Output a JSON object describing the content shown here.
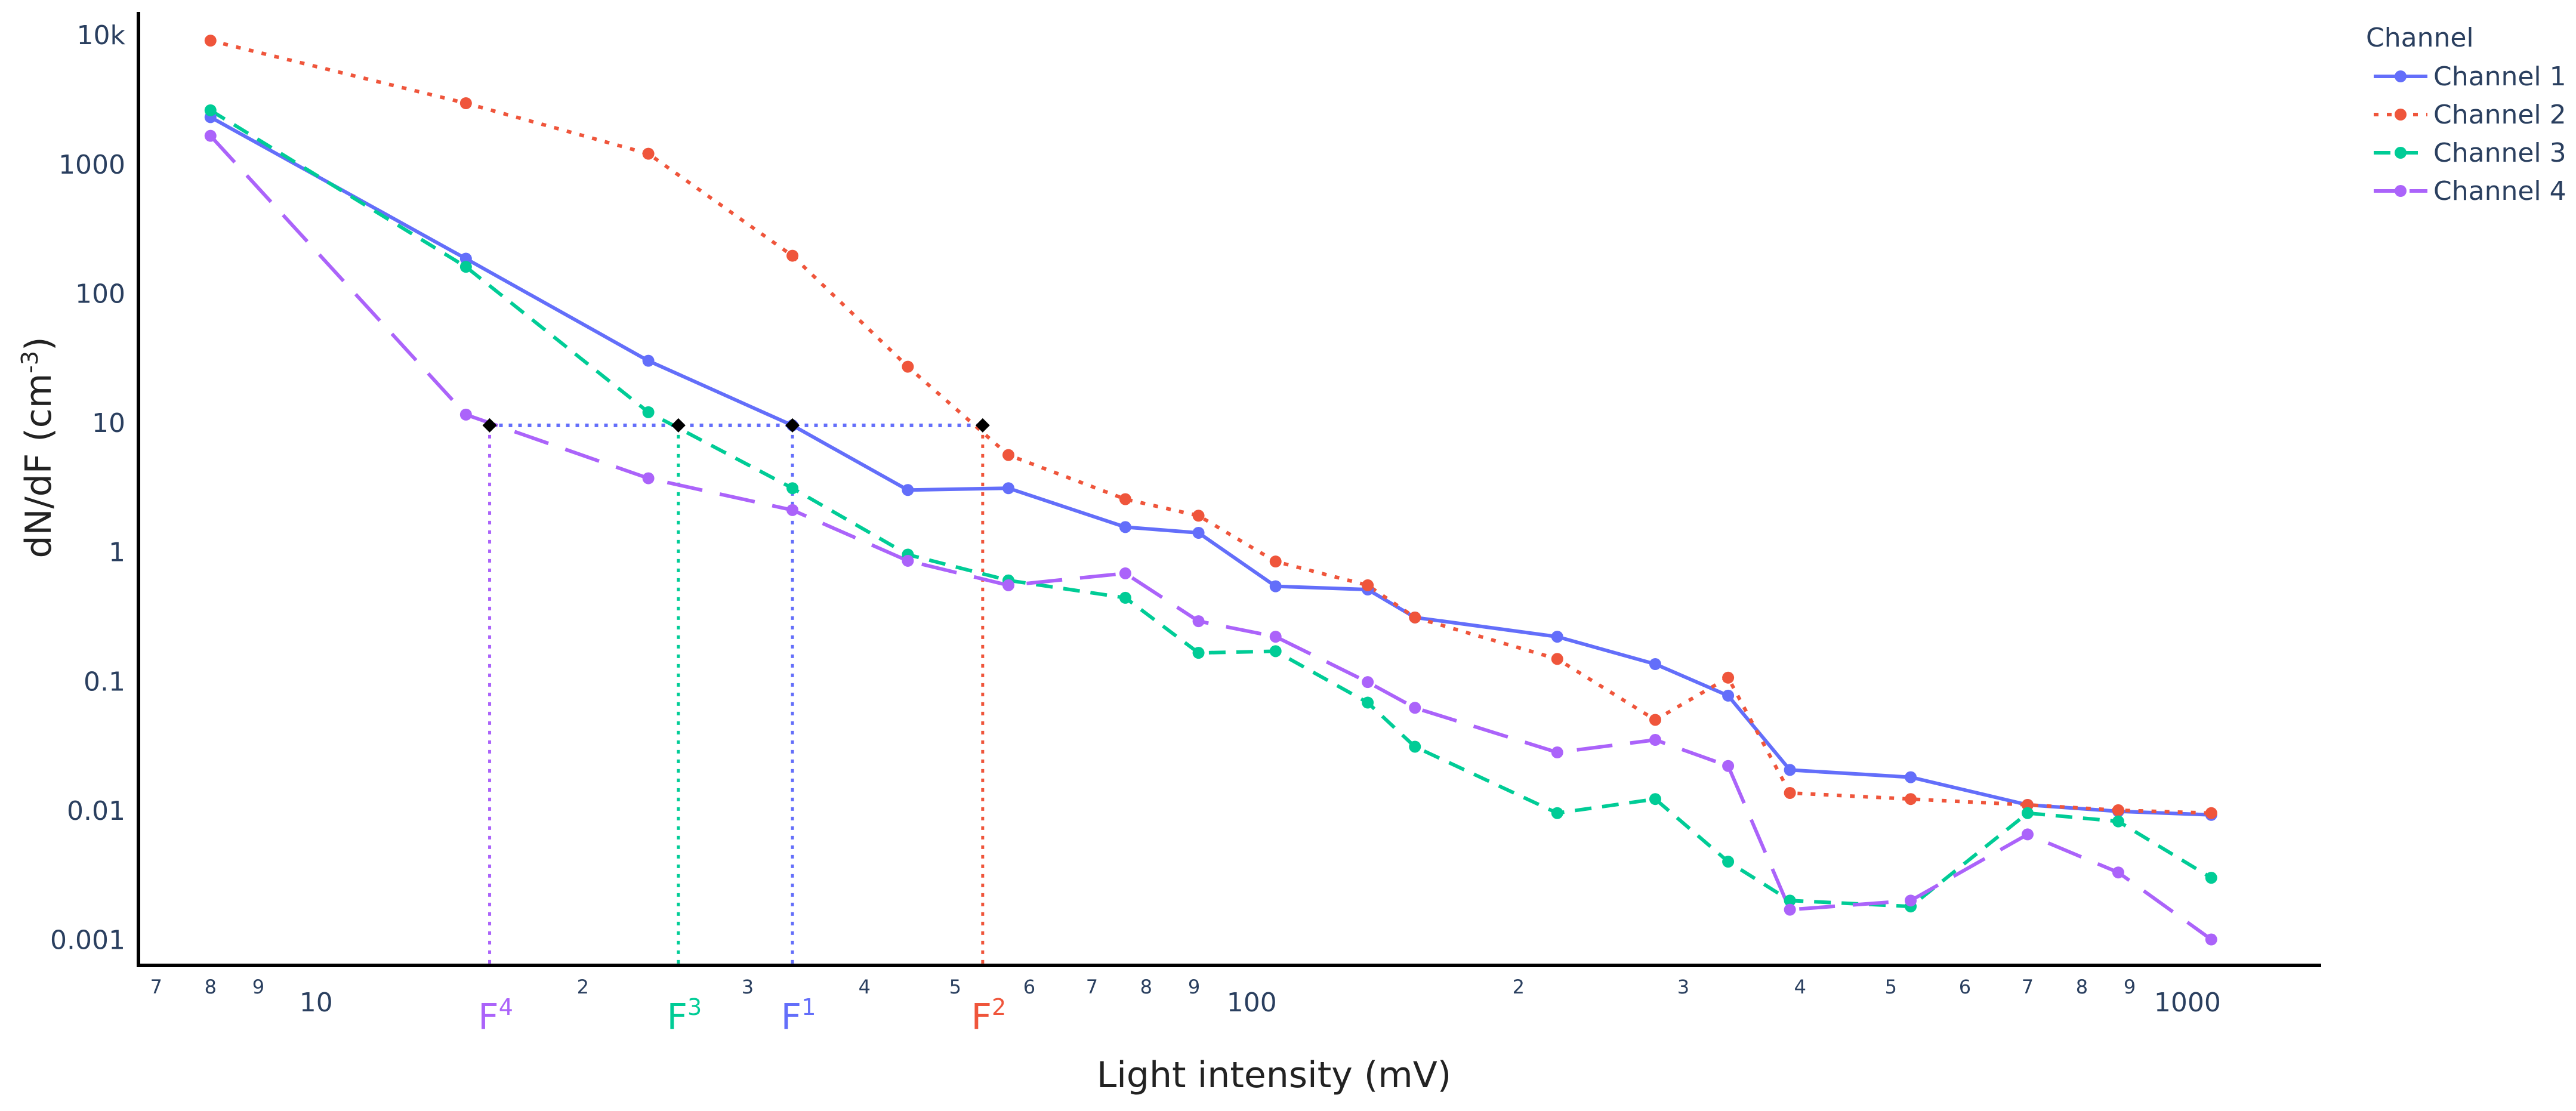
{
  "chart_data": {
    "type": "line",
    "x_scale": "log",
    "y_scale": "log",
    "xlabel": "Light intensity (mV)",
    "ylabel": "dN/dF (cm",
    "ylabel_sup": "-3",
    "ylabel_close": ")",
    "xlim": [
      6.7,
      1400
    ],
    "ylim": [
      0.00063,
      15000
    ],
    "x_ticks_major": [
      {
        "value": 10,
        "label": "10"
      },
      {
        "value": 100,
        "label": "100"
      },
      {
        "value": 1000,
        "label": "1000"
      }
    ],
    "x_ticks_minor": [
      {
        "value": 7,
        "label": "7"
      },
      {
        "value": 8,
        "label": "8"
      },
      {
        "value": 9,
        "label": "9"
      },
      {
        "value": 20,
        "label": "2"
      },
      {
        "value": 30,
        "label": "3"
      },
      {
        "value": 40,
        "label": "4"
      },
      {
        "value": 50,
        "label": "5"
      },
      {
        "value": 60,
        "label": "6"
      },
      {
        "value": 70,
        "label": "7"
      },
      {
        "value": 80,
        "label": "8"
      },
      {
        "value": 90,
        "label": "9"
      },
      {
        "value": 200,
        "label": "2"
      },
      {
        "value": 300,
        "label": "3"
      },
      {
        "value": 400,
        "label": "4"
      },
      {
        "value": 500,
        "label": "5"
      },
      {
        "value": 600,
        "label": "6"
      },
      {
        "value": 700,
        "label": "7"
      },
      {
        "value": 800,
        "label": "8"
      },
      {
        "value": 900,
        "label": "9"
      }
    ],
    "y_ticks": [
      {
        "value": 10000,
        "label": "10k"
      },
      {
        "value": 1000,
        "label": "1000"
      },
      {
        "value": 100,
        "label": "100"
      },
      {
        "value": 10,
        "label": "10"
      },
      {
        "value": 1,
        "label": "1"
      },
      {
        "value": 0.1,
        "label": "0.1"
      },
      {
        "value": 0.01,
        "label": "0.01"
      },
      {
        "value": 0.001,
        "label": "0.001"
      }
    ],
    "legend_title": "Channel",
    "legend_position": "top-right",
    "x": [
      8,
      15,
      23.5,
      33.5,
      44.5,
      57,
      76,
      91,
      110,
      138,
      155,
      220,
      280,
      335,
      390,
      525,
      700,
      875,
      1100
    ],
    "series": [
      {
        "name": "Channel 1",
        "color": "#636efa",
        "dash": "solid",
        "values": [
          2300,
          185,
          30,
          9.5,
          3.0,
          3.1,
          1.55,
          1.4,
          0.54,
          0.51,
          0.31,
          0.22,
          0.135,
          0.077,
          0.0205,
          0.018,
          0.011,
          0.0098,
          0.0092
        ]
      },
      {
        "name": "Channel 2",
        "color": "#ef553b",
        "dash": "dot",
        "values": [
          9000,
          2950,
          1200,
          195,
          27,
          5.6,
          2.55,
          1.9,
          0.84,
          0.55,
          0.31,
          0.148,
          0.05,
          0.106,
          0.0136,
          0.0122,
          0.011,
          0.01,
          0.0095
        ]
      },
      {
        "name": "Channel 3",
        "color": "#00cc96",
        "dash": "dash",
        "values": [
          2600,
          160,
          12,
          3.1,
          0.95,
          0.6,
          0.44,
          0.165,
          0.17,
          0.068,
          0.031,
          0.0095,
          0.0122,
          0.004,
          0.002,
          0.0018,
          0.0095,
          0.0082,
          0.003
        ]
      },
      {
        "name": "Channel 4",
        "color": "#ab63fa",
        "dash": "longdash",
        "values": [
          1650,
          11.5,
          3.7,
          2.1,
          0.85,
          0.55,
          0.68,
          0.29,
          0.22,
          0.098,
          0.062,
          0.028,
          0.035,
          0.022,
          0.0017,
          0.002,
          0.0065,
          0.0033,
          0.001
        ]
      }
    ],
    "threshold": {
      "y": 9.5,
      "color": "#636efa",
      "points": [
        {
          "label": "F",
          "sup": "4",
          "x": 15.9,
          "color": "#ab63fa"
        },
        {
          "label": "F",
          "sup": "3",
          "x": 25.3,
          "color": "#00cc96"
        },
        {
          "label": "F",
          "sup": "1",
          "x": 33.5,
          "color": "#636efa"
        },
        {
          "label": "F",
          "sup": "2",
          "x": 53.5,
          "color": "#ef553b"
        }
      ]
    }
  }
}
